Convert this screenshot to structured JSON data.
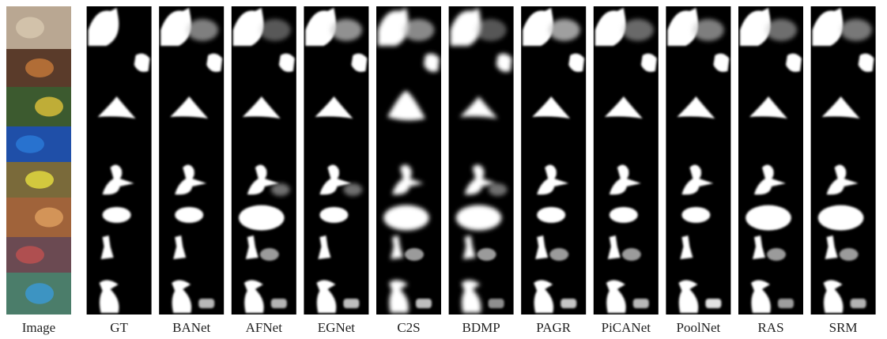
{
  "columns": [
    "Image",
    "GT",
    "BANet",
    "AFNet",
    "EGNet",
    "C2S",
    "BDMP",
    "PAGR",
    "PiCANet",
    "PoolNet",
    "RAS",
    "SRM"
  ]
}
